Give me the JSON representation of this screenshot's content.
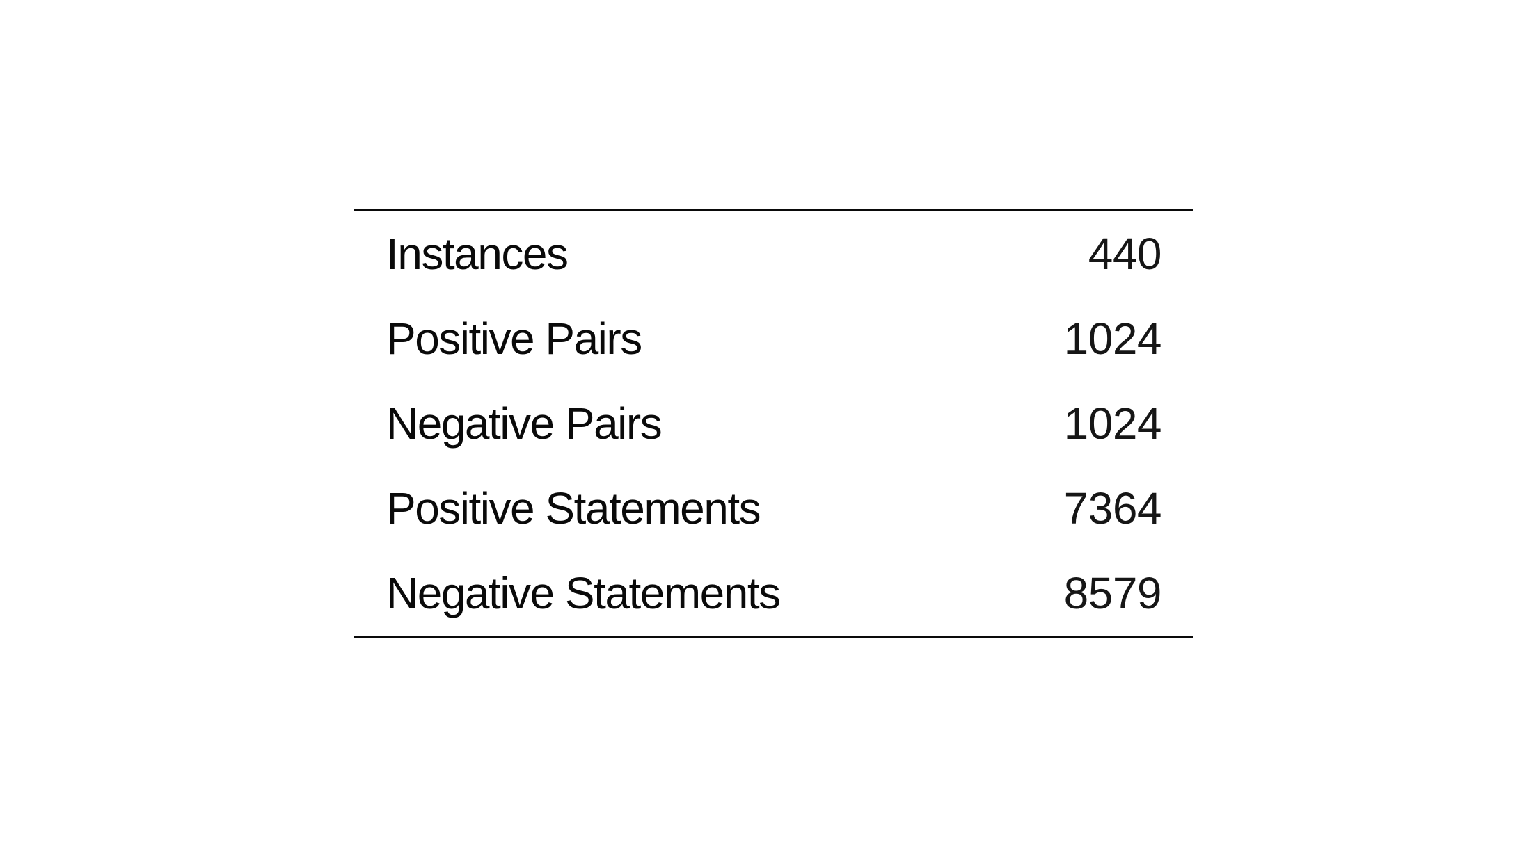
{
  "table": {
    "rows": [
      {
        "label": "Instances",
        "value": "440"
      },
      {
        "label": "Positive Pairs",
        "value": "1024"
      },
      {
        "label": "Negative Pairs",
        "value": "1024"
      },
      {
        "label": "Positive Statements",
        "value": "7364"
      },
      {
        "label": "Negative Statements",
        "value": "8579"
      }
    ]
  }
}
